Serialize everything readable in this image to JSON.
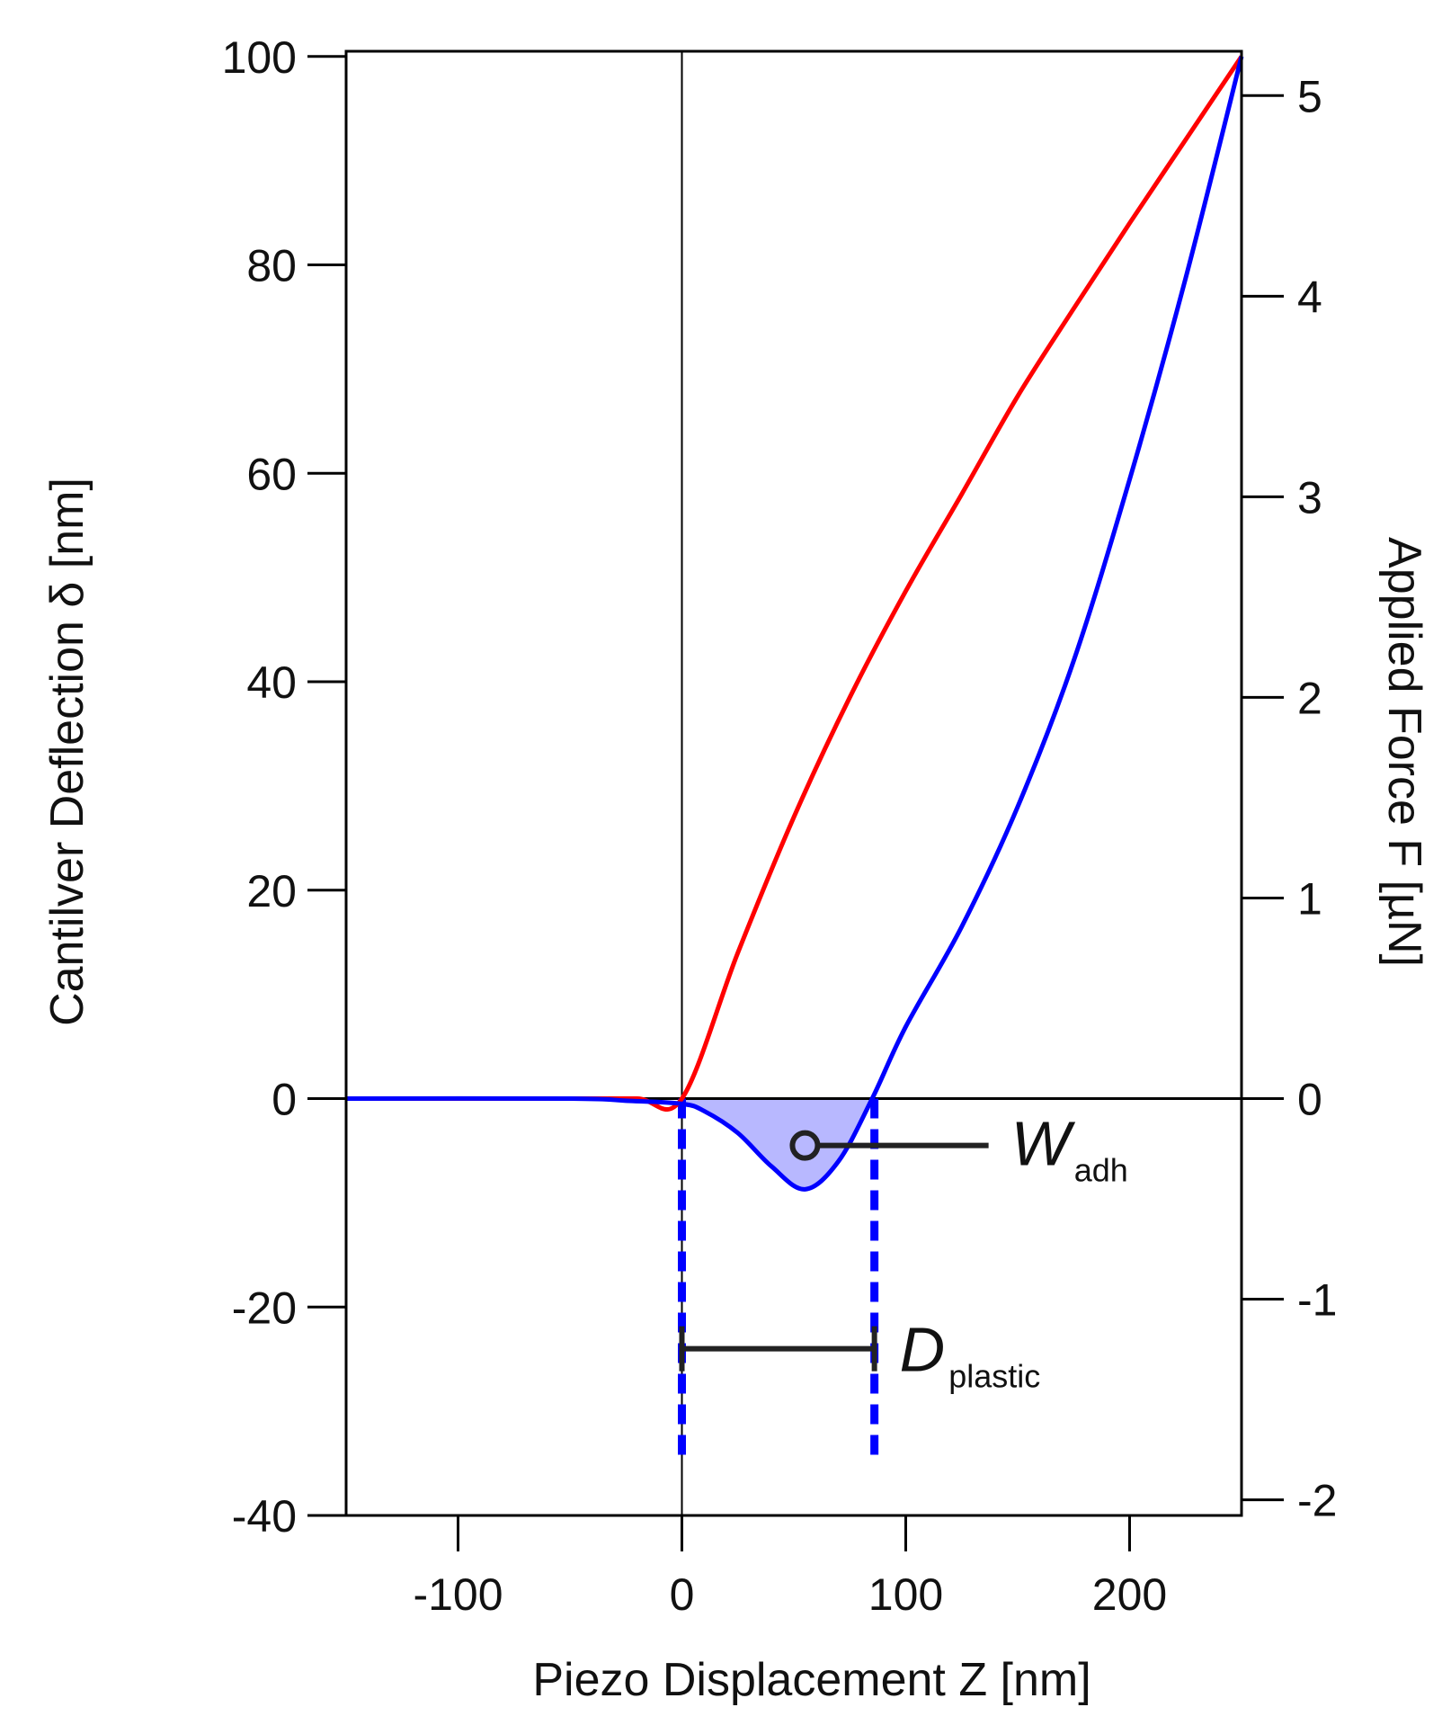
{
  "chart_data": {
    "type": "line",
    "xlabel": "Piezo Displacement Z [nm]",
    "ylabel": "Cantilver Deflection δ [nm]",
    "y2label": "Applied Force F [µN]",
    "xlim": [
      -150,
      250
    ],
    "xticks": [
      -100,
      0,
      100,
      200
    ],
    "ylim": [
      -40,
      100.5
    ],
    "yticks": [
      -40,
      -20,
      0,
      20,
      40,
      60,
      80,
      100
    ],
    "y2lim": [
      -2.078,
      5.221
    ],
    "y2ticks": [
      -2,
      -1,
      0,
      1,
      2,
      3,
      4,
      5
    ],
    "zero_lines": true,
    "series": [
      {
        "color": "#ff0000",
        "x": [
          -150,
          -50,
          -20,
          0,
          25,
          50,
          75,
          100,
          125,
          150,
          175,
          200,
          225,
          250
        ],
        "values": [
          0,
          0,
          0,
          0,
          14,
          27,
          38.5,
          48.7,
          58,
          67.4,
          75.8,
          84,
          92,
          100
        ]
      },
      {
        "color": "#0000ff",
        "fill": "#b8b8ff",
        "x": [
          -150,
          -50,
          -25,
          0,
          10,
          25,
          40,
          55,
          70,
          85,
          100,
          125,
          150,
          175,
          200,
          225,
          250
        ],
        "values": [
          0,
          0,
          -0.2,
          -0.5,
          -1.2,
          -3.3,
          -6.5,
          -8.7,
          -6,
          0,
          6.9,
          16.5,
          28,
          42,
          59.4,
          78.7,
          100
        ]
      }
    ],
    "annotations": {
      "w_adh": {
        "text": "W",
        "subscript": "adh",
        "x": 55,
        "y": -4.5,
        "line_to_x": 137
      },
      "d_plastic": {
        "text": "D",
        "subscript": "plastic",
        "x": [
          0,
          86
        ],
        "y": -24
      },
      "dashed_lines": {
        "x": [
          0,
          86
        ],
        "y_from": 0,
        "y_to": -35,
        "color": "#0000ff"
      }
    }
  }
}
